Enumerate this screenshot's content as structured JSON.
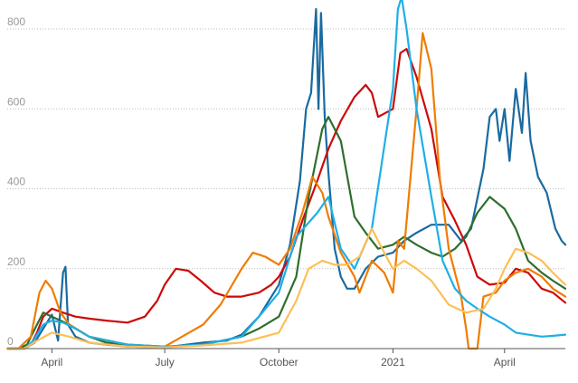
{
  "chart_data": {
    "type": "line",
    "title": "",
    "xlabel": "",
    "ylabel": "",
    "x_range": [
      "2020-02-25",
      "2021-05-20"
    ],
    "ylim": [
      0,
      850
    ],
    "yticks": [
      0,
      200,
      400,
      600,
      800
    ],
    "xticks": [
      {
        "date": "2020-04-01",
        "label": "April"
      },
      {
        "date": "2020-07-01",
        "label": "July"
      },
      {
        "date": "2020-10-01",
        "label": "October"
      },
      {
        "date": "2021-01-01",
        "label": "2021"
      },
      {
        "date": "2021-04-01",
        "label": "April"
      }
    ],
    "grid": true,
    "legend": "none",
    "series": [
      {
        "color": "#1a6aa0",
        "points": [
          [
            "2020-02-25",
            0
          ],
          [
            "2020-03-10",
            0
          ],
          [
            "2020-03-18",
            15
          ],
          [
            "2020-03-25",
            50
          ],
          [
            "2020-04-01",
            85
          ],
          [
            "2020-04-06",
            20
          ],
          [
            "2020-04-10",
            190
          ],
          [
            "2020-04-12",
            205
          ],
          [
            "2020-04-14",
            60
          ],
          [
            "2020-04-20",
            30
          ],
          [
            "2020-05-01",
            15
          ],
          [
            "2020-05-15",
            10
          ],
          [
            "2020-06-01",
            5
          ],
          [
            "2020-07-01",
            3
          ],
          [
            "2020-08-01",
            15
          ],
          [
            "2020-08-20",
            20
          ],
          [
            "2020-09-01",
            35
          ],
          [
            "2020-09-15",
            80
          ],
          [
            "2020-10-01",
            160
          ],
          [
            "2020-10-10",
            260
          ],
          [
            "2020-10-18",
            420
          ],
          [
            "2020-10-23",
            600
          ],
          [
            "2020-10-27",
            640
          ],
          [
            "2020-10-31",
            850
          ],
          [
            "2020-11-02",
            600
          ],
          [
            "2020-11-04",
            840
          ],
          [
            "2020-11-07",
            580
          ],
          [
            "2020-11-10",
            440
          ],
          [
            "2020-11-15",
            250
          ],
          [
            "2020-11-20",
            180
          ],
          [
            "2020-11-25",
            150
          ],
          [
            "2020-12-01",
            150
          ],
          [
            "2020-12-10",
            200
          ],
          [
            "2020-12-20",
            230
          ],
          [
            "2021-01-01",
            240
          ],
          [
            "2021-01-10",
            270
          ],
          [
            "2021-01-20",
            290
          ],
          [
            "2021-02-01",
            310
          ],
          [
            "2021-02-15",
            310
          ],
          [
            "2021-02-25",
            270
          ],
          [
            "2021-03-05",
            300
          ],
          [
            "2021-03-15",
            450
          ],
          [
            "2021-03-20",
            580
          ],
          [
            "2021-03-25",
            600
          ],
          [
            "2021-03-28",
            520
          ],
          [
            "2021-04-01",
            600
          ],
          [
            "2021-04-05",
            470
          ],
          [
            "2021-04-10",
            650
          ],
          [
            "2021-04-15",
            540
          ],
          [
            "2021-04-18",
            690
          ],
          [
            "2021-04-22",
            520
          ],
          [
            "2021-04-28",
            430
          ],
          [
            "2021-05-05",
            390
          ],
          [
            "2021-05-12",
            300
          ],
          [
            "2021-05-17",
            270
          ],
          [
            "2021-05-20",
            260
          ]
        ]
      },
      {
        "color": "#cc0a0a",
        "points": [
          [
            "2020-02-25",
            0
          ],
          [
            "2020-03-10",
            0
          ],
          [
            "2020-03-15",
            10
          ],
          [
            "2020-03-20",
            40
          ],
          [
            "2020-03-25",
            80
          ],
          [
            "2020-04-01",
            100
          ],
          [
            "2020-04-10",
            90
          ],
          [
            "2020-04-20",
            80
          ],
          [
            "2020-05-01",
            75
          ],
          [
            "2020-05-15",
            70
          ],
          [
            "2020-06-01",
            65
          ],
          [
            "2020-06-15",
            80
          ],
          [
            "2020-06-25",
            120
          ],
          [
            "2020-07-01",
            160
          ],
          [
            "2020-07-10",
            200
          ],
          [
            "2020-07-20",
            195
          ],
          [
            "2020-07-30",
            170
          ],
          [
            "2020-08-10",
            140
          ],
          [
            "2020-08-20",
            130
          ],
          [
            "2020-09-01",
            130
          ],
          [
            "2020-09-15",
            140
          ],
          [
            "2020-09-25",
            160
          ],
          [
            "2020-10-01",
            180
          ],
          [
            "2020-10-10",
            230
          ],
          [
            "2020-10-20",
            320
          ],
          [
            "2020-11-01",
            420
          ],
          [
            "2020-11-10",
            500
          ],
          [
            "2020-11-20",
            570
          ],
          [
            "2020-12-01",
            630
          ],
          [
            "2020-12-10",
            660
          ],
          [
            "2020-12-15",
            640
          ],
          [
            "2020-12-20",
            580
          ],
          [
            "2021-01-01",
            600
          ],
          [
            "2021-01-07",
            740
          ],
          [
            "2021-01-12",
            750
          ],
          [
            "2021-01-20",
            680
          ],
          [
            "2021-02-01",
            550
          ],
          [
            "2021-02-10",
            380
          ],
          [
            "2021-02-20",
            320
          ],
          [
            "2021-03-01",
            260
          ],
          [
            "2021-03-10",
            180
          ],
          [
            "2021-03-20",
            160
          ],
          [
            "2021-04-01",
            165
          ],
          [
            "2021-04-10",
            200
          ],
          [
            "2021-04-20",
            190
          ],
          [
            "2021-05-01",
            150
          ],
          [
            "2021-05-10",
            140
          ],
          [
            "2021-05-20",
            115
          ]
        ]
      },
      {
        "color": "#2e6e2e",
        "points": [
          [
            "2020-02-25",
            0
          ],
          [
            "2020-03-05",
            0
          ],
          [
            "2020-03-12",
            10
          ],
          [
            "2020-03-20",
            60
          ],
          [
            "2020-03-25",
            90
          ],
          [
            "2020-04-01",
            80
          ],
          [
            "2020-04-15",
            60
          ],
          [
            "2020-05-01",
            30
          ],
          [
            "2020-05-15",
            15
          ],
          [
            "2020-06-01",
            10
          ],
          [
            "2020-07-01",
            5
          ],
          [
            "2020-08-01",
            10
          ],
          [
            "2020-09-01",
            30
          ],
          [
            "2020-09-15",
            50
          ],
          [
            "2020-10-01",
            80
          ],
          [
            "2020-10-15",
            180
          ],
          [
            "2020-10-25",
            380
          ],
          [
            "2020-11-05",
            550
          ],
          [
            "2020-11-10",
            580
          ],
          [
            "2020-11-20",
            520
          ],
          [
            "2020-12-01",
            330
          ],
          [
            "2020-12-10",
            290
          ],
          [
            "2020-12-20",
            250
          ],
          [
            "2021-01-01",
            260
          ],
          [
            "2021-01-10",
            280
          ],
          [
            "2021-01-20",
            260
          ],
          [
            "2021-02-01",
            240
          ],
          [
            "2021-02-10",
            230
          ],
          [
            "2021-02-20",
            250
          ],
          [
            "2021-03-01",
            280
          ],
          [
            "2021-03-10",
            340
          ],
          [
            "2021-03-20",
            380
          ],
          [
            "2021-04-01",
            350
          ],
          [
            "2021-04-10",
            300
          ],
          [
            "2021-04-20",
            220
          ],
          [
            "2021-05-01",
            190
          ],
          [
            "2021-05-10",
            170
          ],
          [
            "2021-05-20",
            150
          ]
        ]
      },
      {
        "color": "#f07c00",
        "points": [
          [
            "2020-02-25",
            0
          ],
          [
            "2020-03-05",
            0
          ],
          [
            "2020-03-15",
            30
          ],
          [
            "2020-03-22",
            140
          ],
          [
            "2020-03-27",
            170
          ],
          [
            "2020-04-01",
            150
          ],
          [
            "2020-04-08",
            90
          ],
          [
            "2020-04-15",
            60
          ],
          [
            "2020-05-01",
            30
          ],
          [
            "2020-06-01",
            10
          ],
          [
            "2020-07-01",
            5
          ],
          [
            "2020-07-15",
            30
          ],
          [
            "2020-08-01",
            60
          ],
          [
            "2020-08-15",
            110
          ],
          [
            "2020-09-01",
            200
          ],
          [
            "2020-09-10",
            240
          ],
          [
            "2020-09-20",
            230
          ],
          [
            "2020-10-01",
            210
          ],
          [
            "2020-10-10",
            250
          ],
          [
            "2020-10-20",
            340
          ],
          [
            "2020-10-28",
            430
          ],
          [
            "2020-11-05",
            390
          ],
          [
            "2020-11-10",
            330
          ],
          [
            "2020-11-20",
            240
          ],
          [
            "2020-12-01",
            180
          ],
          [
            "2020-12-05",
            140
          ],
          [
            "2020-12-15",
            220
          ],
          [
            "2020-12-25",
            190
          ],
          [
            "2021-01-01",
            140
          ],
          [
            "2021-01-05",
            270
          ],
          [
            "2021-01-10",
            250
          ],
          [
            "2021-01-20",
            600
          ],
          [
            "2021-01-25",
            790
          ],
          [
            "2021-02-01",
            700
          ],
          [
            "2021-02-08",
            420
          ],
          [
            "2021-02-15",
            250
          ],
          [
            "2021-02-25",
            130
          ],
          [
            "2021-03-01",
            50
          ],
          [
            "2021-03-03",
            0
          ],
          [
            "2021-03-10",
            0
          ],
          [
            "2021-03-15",
            130
          ],
          [
            "2021-03-25",
            140
          ],
          [
            "2021-04-01",
            170
          ],
          [
            "2021-04-10",
            190
          ],
          [
            "2021-04-20",
            200
          ],
          [
            "2021-05-01",
            180
          ],
          [
            "2021-05-10",
            150
          ],
          [
            "2021-05-20",
            130
          ]
        ]
      },
      {
        "color": "#1eafe6",
        "points": [
          [
            "2020-02-25",
            0
          ],
          [
            "2020-03-10",
            0
          ],
          [
            "2020-03-17",
            20
          ],
          [
            "2020-03-25",
            60
          ],
          [
            "2020-04-01",
            70
          ],
          [
            "2020-04-10",
            65
          ],
          [
            "2020-04-20",
            50
          ],
          [
            "2020-05-01",
            30
          ],
          [
            "2020-06-01",
            10
          ],
          [
            "2020-07-01",
            5
          ],
          [
            "2020-08-01",
            10
          ],
          [
            "2020-09-01",
            30
          ],
          [
            "2020-09-15",
            80
          ],
          [
            "2020-10-01",
            140
          ],
          [
            "2020-10-15",
            280
          ],
          [
            "2020-11-01",
            340
          ],
          [
            "2020-11-10",
            380
          ],
          [
            "2020-11-20",
            250
          ],
          [
            "2020-12-01",
            200
          ],
          [
            "2020-12-15",
            300
          ],
          [
            "2021-01-01",
            650
          ],
          [
            "2021-01-05",
            850
          ],
          [
            "2021-01-08",
            880
          ],
          [
            "2021-01-12",
            800
          ],
          [
            "2021-01-20",
            600
          ],
          [
            "2021-02-01",
            380
          ],
          [
            "2021-02-10",
            220
          ],
          [
            "2021-02-20",
            150
          ],
          [
            "2021-03-01",
            120
          ],
          [
            "2021-03-10",
            100
          ],
          [
            "2021-03-20",
            80
          ],
          [
            "2021-04-01",
            60
          ],
          [
            "2021-04-10",
            40
          ],
          [
            "2021-04-20",
            35
          ],
          [
            "2021-05-01",
            30
          ],
          [
            "2021-05-10",
            32
          ],
          [
            "2021-05-20",
            35
          ]
        ]
      },
      {
        "color": "#fdbf57",
        "points": [
          [
            "2020-02-25",
            0
          ],
          [
            "2020-03-10",
            0
          ],
          [
            "2020-03-20",
            20
          ],
          [
            "2020-04-01",
            40
          ],
          [
            "2020-04-15",
            30
          ],
          [
            "2020-05-01",
            15
          ],
          [
            "2020-06-01",
            5
          ],
          [
            "2020-07-01",
            3
          ],
          [
            "2020-08-01",
            8
          ],
          [
            "2020-09-01",
            15
          ],
          [
            "2020-10-01",
            40
          ],
          [
            "2020-10-15",
            120
          ],
          [
            "2020-10-25",
            200
          ],
          [
            "2020-11-05",
            220
          ],
          [
            "2020-11-15",
            210
          ],
          [
            "2020-11-25",
            210
          ],
          [
            "2020-12-05",
            230
          ],
          [
            "2020-12-15",
            300
          ],
          [
            "2020-12-25",
            240
          ],
          [
            "2021-01-01",
            200
          ],
          [
            "2021-01-10",
            220
          ],
          [
            "2021-01-20",
            200
          ],
          [
            "2021-02-01",
            170
          ],
          [
            "2021-02-15",
            110
          ],
          [
            "2021-03-01",
            90
          ],
          [
            "2021-03-15",
            100
          ],
          [
            "2021-03-25",
            150
          ],
          [
            "2021-04-01",
            200
          ],
          [
            "2021-04-10",
            250
          ],
          [
            "2021-04-20",
            240
          ],
          [
            "2021-05-01",
            220
          ],
          [
            "2021-05-10",
            190
          ],
          [
            "2021-05-20",
            160
          ]
        ]
      }
    ]
  }
}
